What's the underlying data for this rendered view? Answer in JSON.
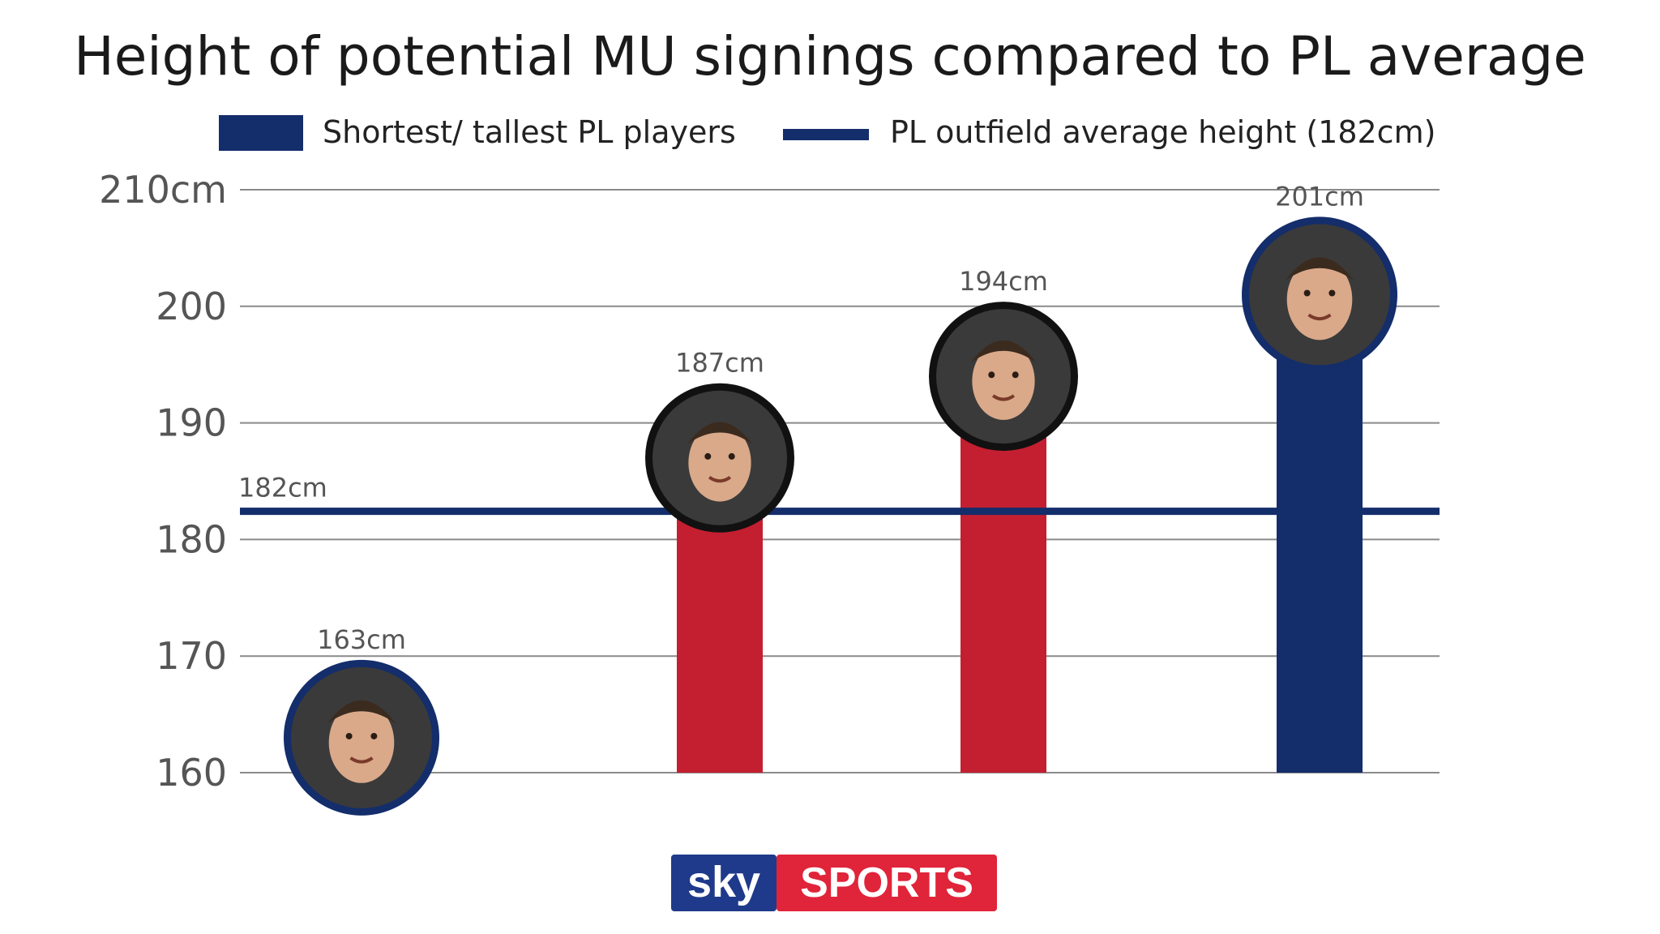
{
  "chart_data": {
    "type": "bar",
    "title": "Height of potential MU signings compared to PL average",
    "legend": {
      "placement": "top",
      "entries": [
        {
          "label": "Shortest/ tallest PL players",
          "shape": "box",
          "color": "#142d6b"
        },
        {
          "label": "PL outfield average height (182cm)",
          "shape": "line",
          "color": "#142d6b"
        }
      ]
    },
    "y_axis": {
      "ylim": [
        160,
        210
      ],
      "ticks": [
        {
          "value": 210,
          "label": "210cm"
        },
        {
          "value": 200,
          "label": "200"
        },
        {
          "value": 190,
          "label": "190"
        },
        {
          "value": 180,
          "label": "180"
        },
        {
          "value": 170,
          "label": "170"
        },
        {
          "value": 160,
          "label": "160"
        }
      ],
      "grid": true
    },
    "reference_line": {
      "value": 182,
      "label": "182cm",
      "color": "#142d6b"
    },
    "bars": [
      {
        "value": 163,
        "label": "163cm",
        "color": "#142d6b",
        "avatar_icon": "player-photo-icon",
        "avatar_ring": "#142d6b",
        "group": "Shortest/ tallest PL players"
      },
      {
        "value": 187,
        "label": "187cm",
        "color": "#c41f30",
        "avatar_icon": "player-photo-icon",
        "avatar_ring": "#111111",
        "group": "potential MU signing"
      },
      {
        "value": 194,
        "label": "194cm",
        "color": "#c41f30",
        "avatar_icon": "player-photo-icon",
        "avatar_ring": "#111111",
        "group": "potential MU signing"
      },
      {
        "value": 201,
        "label": "201cm",
        "color": "#142d6b",
        "avatar_icon": "player-photo-icon",
        "avatar_ring": "#142d6b",
        "group": "Shortest/ tallest PL players"
      }
    ]
  },
  "branding": {
    "sky": "sky",
    "sports": "SPORTS",
    "colors": {
      "sky_bg": "#1f3a8a",
      "sports_bg": "#e0243a"
    }
  },
  "colors": {
    "navy": "#142d6b",
    "red": "#c41f30",
    "grid": "#8a8a8a",
    "text": "#222222",
    "tick": "#555555"
  }
}
